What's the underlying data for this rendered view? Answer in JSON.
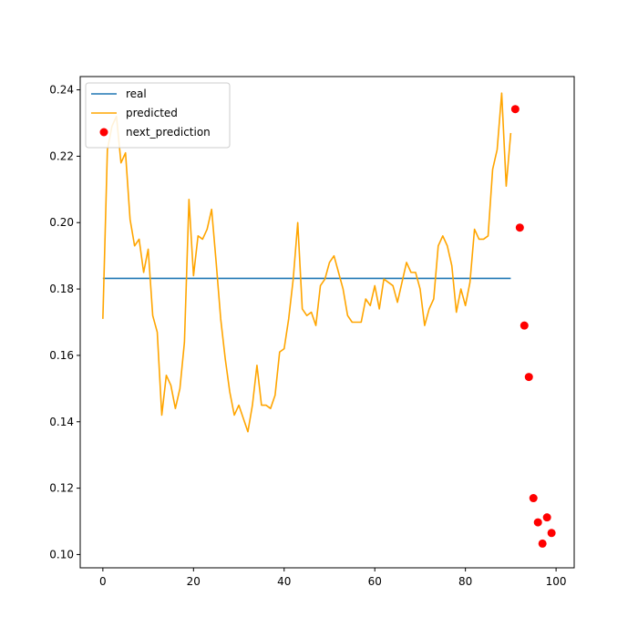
{
  "chart_data": {
    "type": "line",
    "title": "",
    "xlabel": "",
    "ylabel": "",
    "xlim": [
      -5,
      104
    ],
    "ylim": [
      0.096,
      0.244
    ],
    "xticks": [
      0,
      20,
      40,
      60,
      80,
      100
    ],
    "yticks": [
      0.1,
      0.12,
      0.14,
      0.16,
      0.18,
      0.2,
      0.22,
      0.24
    ],
    "ytick_decimals": 2,
    "grid": false,
    "legend_placement": "upper-left",
    "series": [
      {
        "name": "real",
        "kind": "line",
        "color": "#1f77b4",
        "x": [
          0,
          90
        ],
        "y": [
          0.1832,
          0.1832
        ]
      },
      {
        "name": "predicted",
        "kind": "line",
        "color": "#ffa500",
        "x": [
          0,
          1,
          2,
          3,
          4,
          5,
          6,
          7,
          8,
          9,
          10,
          11,
          12,
          13,
          14,
          15,
          16,
          17,
          18,
          19,
          20,
          21,
          22,
          23,
          24,
          25,
          26,
          27,
          28,
          29,
          30,
          31,
          32,
          33,
          34,
          35,
          36,
          37,
          38,
          39,
          40,
          41,
          42,
          43,
          44,
          45,
          46,
          47,
          48,
          49,
          50,
          51,
          52,
          53,
          54,
          55,
          56,
          57,
          58,
          59,
          60,
          61,
          62,
          63,
          64,
          65,
          66,
          67,
          68,
          69,
          70,
          71,
          72,
          73,
          74,
          75,
          76,
          77,
          78,
          79,
          80,
          81,
          82,
          83,
          84,
          85,
          86,
          87,
          88,
          89,
          90
        ],
        "y": [
          0.171,
          0.222,
          0.229,
          0.232,
          0.218,
          0.221,
          0.201,
          0.193,
          0.195,
          0.185,
          0.192,
          0.172,
          0.167,
          0.142,
          0.154,
          0.151,
          0.144,
          0.15,
          0.164,
          0.207,
          0.184,
          0.196,
          0.195,
          0.198,
          0.204,
          0.188,
          0.171,
          0.159,
          0.149,
          0.142,
          0.145,
          0.141,
          0.137,
          0.145,
          0.157,
          0.145,
          0.145,
          0.144,
          0.148,
          0.161,
          0.162,
          0.171,
          0.183,
          0.2,
          0.174,
          0.172,
          0.173,
          0.169,
          0.181,
          0.183,
          0.188,
          0.19,
          0.185,
          0.18,
          0.172,
          0.17,
          0.17,
          0.17,
          0.177,
          0.175,
          0.181,
          0.174,
          0.183,
          0.182,
          0.181,
          0.176,
          0.182,
          0.188,
          0.185,
          0.185,
          0.18,
          0.169,
          0.174,
          0.177,
          0.193,
          0.196,
          0.193,
          0.187,
          0.173,
          0.18,
          0.175,
          0.182,
          0.198,
          0.195,
          0.195,
          0.196,
          0.216,
          0.222,
          0.239,
          0.211,
          0.227
        ]
      },
      {
        "name": "next_prediction",
        "kind": "scatter",
        "color": "#ff0000",
        "x": [
          91,
          92,
          93,
          94,
          95,
          96,
          97,
          98,
          99
        ],
        "y": [
          0.2342,
          0.1985,
          0.169,
          0.1535,
          0.117,
          0.1097,
          0.1033,
          0.1112,
          0.1065
        ]
      }
    ]
  }
}
